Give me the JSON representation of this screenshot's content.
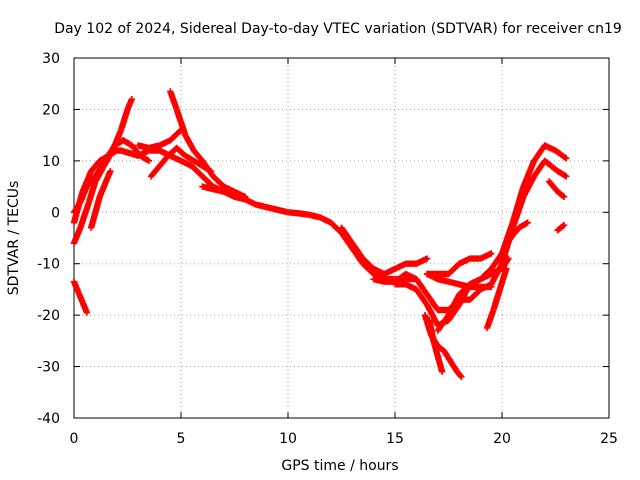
{
  "chart_data": {
    "type": "scatter",
    "title": "Day 102 of 2024, Sidereal Day-to-day VTEC variation (SDTVAR) for receiver cn19",
    "xlabel": "GPS time / hours",
    "ylabel": "SDTVAR / TECUs",
    "xlim": [
      0,
      25
    ],
    "ylim": [
      -40,
      30
    ],
    "xticks": [
      "0",
      "5",
      "10",
      "15",
      "20",
      "25"
    ],
    "yticks": [
      "30",
      "20",
      "10",
      "0",
      "-10",
      "-20",
      "-30",
      "-40"
    ],
    "grid": true,
    "marker": "+",
    "color": "#ff0000",
    "series": [
      {
        "name": "track-1",
        "x": [
          0.0,
          0.4,
          0.8,
          1.2,
          1.6,
          2.0,
          2.2,
          2.6,
          3.0,
          3.5,
          4.0,
          4.5,
          5.0,
          5.5,
          6.0,
          6.5,
          7.0,
          7.5,
          8.0,
          8.5,
          9.0,
          9.5,
          10.0,
          10.5,
          11.0,
          11.5,
          12.0,
          12.5,
          13.0,
          13.5,
          14.0,
          14.5,
          15.0,
          15.5,
          16.0
        ],
        "y": [
          -2,
          4,
          8,
          10,
          11,
          12,
          12,
          11.5,
          11,
          12,
          12,
          11,
          10,
          9,
          7,
          5,
          4,
          3,
          2.5,
          1.5,
          1,
          0.5,
          0,
          -0.2,
          -0.5,
          -1,
          -2,
          -4,
          -7,
          -10,
          -12,
          -13,
          -13,
          -13,
          -13
        ]
      },
      {
        "name": "track-2",
        "x": [
          0.0,
          0.3,
          0.7,
          1.0,
          1.4,
          1.8,
          2.2,
          2.5,
          2.7
        ],
        "y": [
          -6,
          -3,
          2,
          6,
          9,
          12,
          16,
          20,
          22
        ]
      },
      {
        "name": "track-3",
        "x": [
          0.0,
          0.3,
          0.6,
          1.0,
          1.3,
          1.6,
          1.9,
          2.3,
          2.7,
          3.1,
          3.5
        ],
        "y": [
          0,
          2,
          5,
          7,
          9,
          11,
          13,
          14,
          13,
          11,
          10
        ]
      },
      {
        "name": "track-4",
        "x": [
          0.8,
          1.0,
          1.2,
          1.5,
          1.7
        ],
        "y": [
          -3,
          0,
          3,
          6,
          8
        ]
      },
      {
        "name": "track-5",
        "x": [
          0.0,
          0.2,
          0.4,
          0.6
        ],
        "y": [
          -13.5,
          -15.5,
          -17.5,
          -19.5
        ]
      },
      {
        "name": "track-6",
        "x": [
          3.0,
          3.5,
          4.0,
          4.5,
          5.0
        ],
        "y": [
          13,
          12.5,
          13,
          14,
          16
        ]
      },
      {
        "name": "track-7",
        "x": [
          4.5,
          4.8,
          5.2,
          5.6,
          6.0,
          6.5,
          7.0,
          7.5,
          8.0
        ],
        "y": [
          23.5,
          20,
          15,
          12,
          10,
          7,
          5,
          4,
          3
        ]
      },
      {
        "name": "track-8",
        "x": [
          3.6,
          4.0,
          4.4
        ],
        "y": [
          7,
          9,
          11
        ]
      },
      {
        "name": "track-9",
        "x": [
          4.4,
          4.8,
          5.2,
          5.6,
          6.0,
          6.4
        ],
        "y": [
          11,
          12.5,
          11,
          10,
          9,
          8
        ]
      },
      {
        "name": "track-10",
        "x": [
          6.0,
          6.5,
          7.0,
          7.5
        ],
        "y": [
          5,
          4.5,
          4,
          3.5
        ]
      },
      {
        "name": "track-11",
        "x": [
          12.5,
          13.0,
          13.5,
          14.0,
          14.5
        ],
        "y": [
          -3,
          -6,
          -9,
          -11,
          -12
        ]
      },
      {
        "name": "track-12",
        "x": [
          14.0,
          14.5,
          15.0,
          15.5,
          16.0,
          16.5,
          17.0,
          17.5,
          18.0,
          18.5,
          19.0,
          19.5,
          20.0,
          20.5,
          21.0,
          21.5,
          22.0,
          22.3,
          22.6,
          23.0
        ],
        "y": [
          -13,
          -13.5,
          -13.5,
          -12,
          -13,
          -16,
          -19,
          -19,
          -17,
          -17,
          -15,
          -14,
          -10,
          -3,
          3,
          7,
          10,
          9,
          8,
          7
        ]
      },
      {
        "name": "track-13",
        "x": [
          15.0,
          15.5,
          16.0,
          16.5,
          17.0,
          17.5,
          18.0,
          18.5,
          19.0,
          19.5,
          20.0,
          20.5,
          21.0,
          21.5,
          22.0,
          22.5,
          23.0
        ],
        "y": [
          -14,
          -14,
          -15,
          -18,
          -22,
          -21,
          -18,
          -14,
          -13,
          -11,
          -8,
          -2,
          5,
          10,
          13,
          12,
          10.5
        ]
      },
      {
        "name": "track-14",
        "x": [
          14.5,
          15.0,
          15.5,
          16.0,
          16.5
        ],
        "y": [
          -12,
          -11,
          -10,
          -10,
          -9
        ]
      },
      {
        "name": "track-15",
        "x": [
          16.4,
          16.7,
          17.0,
          17.3,
          17.6,
          17.9,
          18.1
        ],
        "y": [
          -20,
          -24,
          -26,
          -27,
          -29,
          -31,
          -32
        ]
      },
      {
        "name": "track-16",
        "x": [
          16.6,
          16.8,
          17.0,
          17.2
        ],
        "y": [
          -21,
          -25,
          -28,
          -31
        ]
      },
      {
        "name": "track-17",
        "x": [
          17.0,
          17.5,
          18.0,
          18.5,
          19.0,
          19.5,
          20.0,
          20.3
        ],
        "y": [
          -23,
          -20,
          -16,
          -14,
          -13,
          -12,
          -11,
          -9
        ]
      },
      {
        "name": "track-18",
        "x": [
          16.5,
          17.0,
          17.5,
          18.0,
          18.5,
          19.0,
          19.5
        ],
        "y": [
          -12,
          -12,
          -12,
          -10,
          -9,
          -9,
          -8
        ]
      },
      {
        "name": "track-19",
        "x": [
          16.5,
          17.0,
          17.5,
          18.0,
          18.5,
          19.0,
          19.5
        ],
        "y": [
          -12,
          -13,
          -13.5,
          -14,
          -14.5,
          -14.5,
          -14.5
        ]
      },
      {
        "name": "track-20",
        "x": [
          19.3,
          19.6,
          19.9,
          20.2
        ],
        "y": [
          -22.5,
          -19,
          -15,
          -11
        ]
      },
      {
        "name": "track-21",
        "x": [
          20.0,
          20.4,
          20.8,
          21.2
        ],
        "y": [
          -8,
          -5,
          -3,
          -2
        ]
      },
      {
        "name": "track-22",
        "x": [
          22.2,
          22.4,
          22.6,
          22.9
        ],
        "y": [
          6,
          5,
          4,
          3
        ]
      },
      {
        "name": "track-23",
        "x": [
          22.6,
          22.9
        ],
        "y": [
          -3.5,
          -2.5
        ]
      }
    ]
  }
}
